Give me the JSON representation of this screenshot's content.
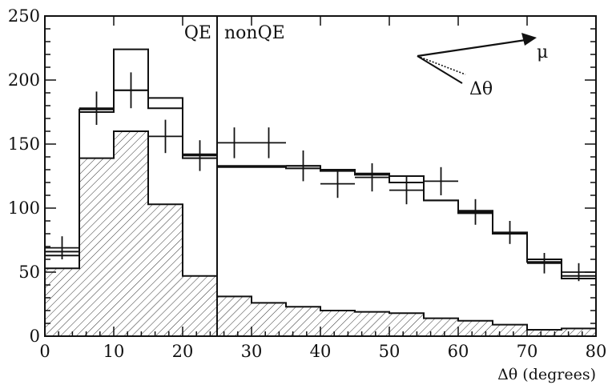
{
  "chart_data": {
    "type": "bar",
    "xlabel": "Δθ (degrees)",
    "xlim": [
      0,
      80
    ],
    "ylim": [
      0,
      250
    ],
    "xticks": [
      0,
      10,
      20,
      30,
      40,
      50,
      60,
      70,
      80
    ],
    "yticks": [
      0,
      50,
      100,
      150,
      200,
      250
    ],
    "bin_edges": [
      0,
      5,
      10,
      15,
      20,
      25,
      30,
      35,
      40,
      45,
      50,
      55,
      60,
      65,
      70,
      75,
      80
    ],
    "series": [
      {
        "style": "data-points",
        "x": [
          2.5,
          7.5,
          12.5,
          17.5,
          22.5,
          27.5,
          32.5,
          37.5,
          42.5,
          47.5,
          52.5,
          57.5,
          62.5,
          67.5,
          72.5,
          77.5
        ],
        "y": [
          69,
          178,
          192,
          156,
          141,
          151,
          151,
          133,
          119,
          124,
          114,
          121,
          97,
          81,
          57,
          50
        ],
        "yerr": [
          9,
          13,
          14,
          13,
          12,
          12,
          12,
          12,
          11,
          11,
          11,
          11,
          10,
          9,
          8,
          7
        ]
      },
      {
        "style": "step-line",
        "values": [
          66,
          175,
          224,
          186,
          139,
          132,
          132,
          131,
          129,
          126,
          120,
          106,
          96,
          81,
          60,
          47
        ]
      },
      {
        "style": "step-line",
        "values": [
          63,
          177,
          192,
          178,
          142,
          133,
          133,
          133,
          130,
          127,
          125,
          106,
          98,
          80,
          58,
          45
        ]
      },
      {
        "style": "hatched",
        "values": [
          53,
          139,
          160,
          103,
          47,
          31,
          26,
          23,
          20,
          19,
          18,
          14,
          12,
          9,
          5,
          6
        ]
      }
    ],
    "vline": {
      "x": 25
    },
    "annotations": {
      "qe": "QE",
      "nonqe": "nonQE",
      "mu": "μ",
      "dtheta": "Δθ"
    }
  }
}
